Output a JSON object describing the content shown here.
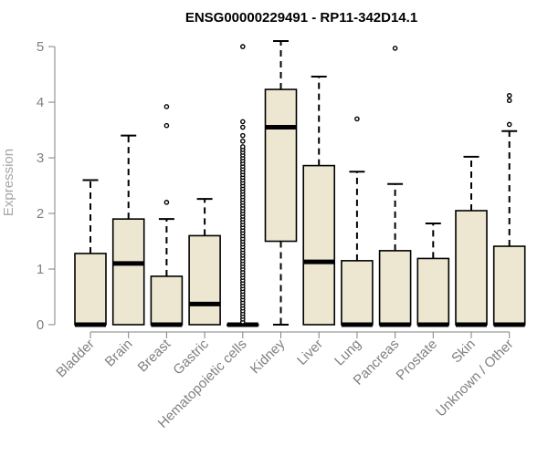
{
  "chart_data": {
    "type": "box",
    "title": "ENSG00000229491 - RP11-342D14.1",
    "xlabel": "",
    "ylabel": "Expression",
    "ylim": [
      0,
      5.1
    ],
    "yticks": [
      0,
      1,
      2,
      3,
      4,
      5
    ],
    "grid": false,
    "legend": "none",
    "colors": {
      "box_fill": "#ede7d1",
      "box_stroke": "#000000",
      "axis": "#808080"
    },
    "categories": [
      "Bladder",
      "Brain",
      "Breast",
      "Gastric",
      "Hematopoietic cells",
      "Kidney",
      "Liver",
      "Lung",
      "Pancreas",
      "Prostate",
      "Skin",
      "Unknown / Other"
    ],
    "boxes": [
      {
        "q1": 0,
        "median": 0,
        "q3": 1.28,
        "whisker_low": 0,
        "whisker_high": 2.6,
        "outliers": []
      },
      {
        "q1": 0,
        "median": 1.1,
        "q3": 1.9,
        "whisker_low": 0,
        "whisker_high": 3.4,
        "outliers": []
      },
      {
        "q1": 0,
        "median": 0,
        "q3": 0.87,
        "whisker_low": 0,
        "whisker_high": 1.9,
        "outliers": [
          2.2,
          3.58,
          3.92
        ]
      },
      {
        "q1": 0,
        "median": 0.37,
        "q3": 1.6,
        "whisker_low": 0,
        "whisker_high": 2.26,
        "outliers": []
      },
      {
        "q1": 0,
        "median": 0,
        "q3": 0,
        "whisker_low": 0,
        "whisker_high": 0,
        "outliers": [
          0.05,
          0.1,
          0.15,
          0.2,
          0.25,
          0.3,
          0.35,
          0.4,
          0.45,
          0.5,
          0.55,
          0.6,
          0.65,
          0.7,
          0.75,
          0.8,
          0.85,
          0.9,
          0.95,
          1.0,
          1.05,
          1.1,
          1.15,
          1.2,
          1.25,
          1.3,
          1.35,
          1.4,
          1.45,
          1.5,
          1.55,
          1.6,
          1.65,
          1.7,
          1.75,
          1.8,
          1.85,
          1.9,
          1.95,
          2.0,
          2.05,
          2.1,
          2.15,
          2.2,
          2.25,
          2.3,
          2.35,
          2.4,
          2.45,
          2.5,
          2.55,
          2.6,
          2.65,
          2.7,
          2.75,
          2.8,
          2.85,
          2.9,
          2.95,
          3.0,
          3.05,
          3.1,
          3.15,
          3.2,
          3.3,
          3.4,
          3.55,
          3.65,
          5.0
        ]
      },
      {
        "q1": 1.5,
        "median": 3.55,
        "q3": 4.23,
        "whisker_low": 0,
        "whisker_high": 5.1,
        "outliers": []
      },
      {
        "q1": 0,
        "median": 1.13,
        "q3": 2.86,
        "whisker_low": 0,
        "whisker_high": 4.46,
        "outliers": []
      },
      {
        "q1": 0,
        "median": 0,
        "q3": 1.15,
        "whisker_low": 0,
        "whisker_high": 2.75,
        "outliers": [
          3.7
        ]
      },
      {
        "q1": 0,
        "median": 0,
        "q3": 1.33,
        "whisker_low": 0,
        "whisker_high": 2.53,
        "outliers": [
          4.97
        ]
      },
      {
        "q1": 0,
        "median": 0,
        "q3": 1.19,
        "whisker_low": 0,
        "whisker_high": 1.82,
        "outliers": []
      },
      {
        "q1": 0,
        "median": 0,
        "q3": 2.05,
        "whisker_low": 0,
        "whisker_high": 3.02,
        "outliers": []
      },
      {
        "q1": 0,
        "median": 0,
        "q3": 1.41,
        "whisker_low": 0,
        "whisker_high": 3.48,
        "outliers": [
          3.6,
          4.03,
          4.12
        ]
      }
    ]
  }
}
